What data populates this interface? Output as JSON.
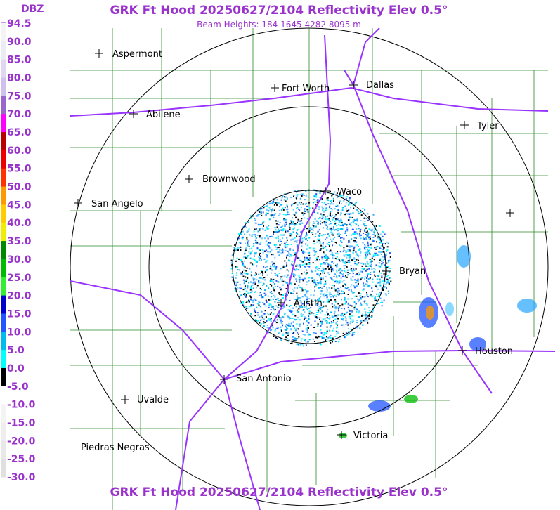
{
  "header": {
    "title": "GRK Ft Hood 20250627/2104 Reflectivity Elev 0.5°",
    "subtitle": "Beam Heights: 184 1645 4282 8095 m"
  },
  "footer": {
    "title": "GRK Ft Hood 20250627/2104 Reflectivity Elev 0.5°"
  },
  "legend": {
    "title": "DBZ",
    "labels": [
      "94.5",
      "90.0",
      "85.0",
      "80.0",
      "75.0",
      "70.0",
      "65.0",
      "60.0",
      "55.0",
      "50.0",
      "45.0",
      "40.0",
      "35.0",
      "30.0",
      "25.0",
      "20.0",
      "15.0",
      "10.0",
      "5.0",
      "0.0",
      "-5.0",
      "-10.0",
      "-15.0",
      "-20.0",
      "-25.0",
      "-30.0"
    ],
    "colors": [
      "#f4f4f4",
      "#ececf4",
      "#e0d8f0",
      "#d0c0ec",
      "#9966cc",
      "#ff00ff",
      "#bb0000",
      "#ee0000",
      "#ff3300",
      "#ff9900",
      "#ffcc00",
      "#eeee00",
      "#008800",
      "#00bb00",
      "#33ee33",
      "#0000cc",
      "#2255ff",
      "#00bbee",
      "#00ffff",
      "#000000",
      "#ffffff",
      "#f4f4f4",
      "#eeeeee",
      "#e8e8e8",
      "#e0e0e0"
    ]
  },
  "cities": [
    "Aspermont",
    "Fort Worth",
    "Dallas",
    "Abilene",
    "Tyler",
    "Brownwood",
    "Waco",
    "San Angelo",
    "Bryan",
    "Austin",
    "Houston",
    "San Antonio",
    "Uvalde",
    "Victoria",
    "Piedras Negras"
  ]
}
